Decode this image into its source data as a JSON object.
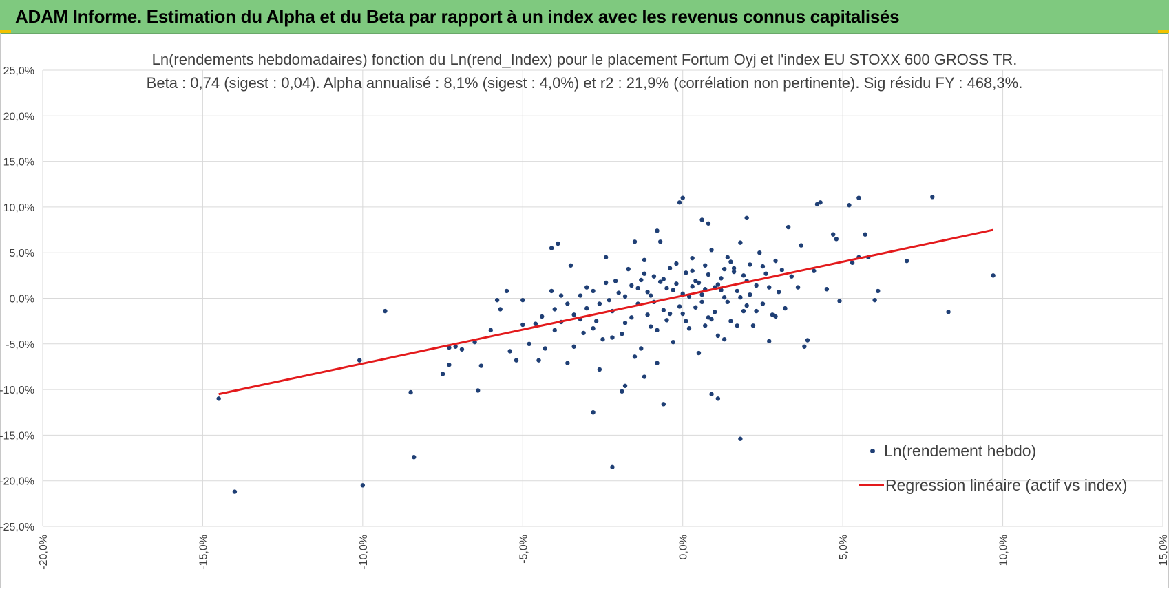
{
  "header": {
    "title": "ADAM Informe. Estimation du Alpha et du Beta par rapport à un index avec les revenus connus capitalisés"
  },
  "colors": {
    "banner": "#7fc97f",
    "points": "#1f3f75",
    "regression": "#e31a1c",
    "grid": "#d9d9d9",
    "text": "#404040"
  },
  "chart_data": {
    "type": "scatter",
    "title": "Ln(rendements hebdomadaires) fonction du Ln(rend_Index) pour le placement Fortum Oyj et l'index EU STOXX 600 GROSS TR.",
    "subtitle": "Beta : 0,74 (sigest : 0,04). Alpha annualisé : 8,1% (sigest : 4,0%) et r2 : 21,9% (corrélation non pertinente). Sig résidu FY : 468,3%.",
    "xlim": [
      -0.2,
      0.15
    ],
    "ylim": [
      -0.25,
      0.25
    ],
    "x_ticks": [
      -0.2,
      -0.15,
      -0.1,
      -0.05,
      0.0,
      0.05,
      0.1,
      0.15
    ],
    "x_tick_labels": [
      "-20,0%",
      "-15,0%",
      "-10,0%",
      "-5,0%",
      "0,0%",
      "5,0%",
      "10,0%",
      "15,0%"
    ],
    "y_ticks": [
      0.25,
      0.2,
      0.15,
      0.1,
      0.05,
      0.0,
      -0.05,
      -0.1,
      -0.15,
      -0.2,
      -0.25
    ],
    "y_tick_labels": [
      "25,0%",
      "20,0%",
      "15,0%",
      "10,0%",
      "5,0%",
      "0,0%",
      "-5,0%",
      "-10,0%",
      "-15,0%",
      "-20,0%",
      "-25,0%"
    ],
    "grid": true,
    "legend_position": "bottom-right",
    "series": [
      {
        "name": "Ln(rendement hebdo)",
        "kind": "scatter",
        "points": [
          [
            -0.145,
            -0.11
          ],
          [
            -0.14,
            -0.212
          ],
          [
            -0.101,
            -0.068
          ],
          [
            -0.1,
            -0.205
          ],
          [
            -0.093,
            -0.014
          ],
          [
            -0.085,
            -0.103
          ],
          [
            -0.084,
            -0.174
          ],
          [
            -0.075,
            -0.083
          ],
          [
            -0.073,
            -0.073
          ],
          [
            -0.073,
            -0.054
          ],
          [
            -0.071,
            -0.053
          ],
          [
            -0.069,
            -0.056
          ],
          [
            -0.064,
            -0.101
          ],
          [
            -0.063,
            -0.074
          ],
          [
            -0.065,
            -0.048
          ],
          [
            -0.06,
            -0.035
          ],
          [
            -0.058,
            -0.002
          ],
          [
            -0.057,
            -0.012
          ],
          [
            -0.055,
            0.008
          ],
          [
            -0.054,
            -0.058
          ],
          [
            -0.052,
            -0.068
          ],
          [
            -0.05,
            -0.029
          ],
          [
            -0.05,
            -0.002
          ],
          [
            -0.048,
            -0.05
          ],
          [
            -0.046,
            -0.028
          ],
          [
            -0.045,
            -0.068
          ],
          [
            -0.043,
            -0.055
          ],
          [
            -0.04,
            -0.035
          ],
          [
            -0.041,
            0.008
          ],
          [
            -0.038,
            0.003
          ],
          [
            -0.036,
            -0.071
          ],
          [
            -0.034,
            -0.053
          ],
          [
            -0.032,
            -0.023
          ],
          [
            -0.03,
            0.012
          ],
          [
            -0.028,
            0.008
          ],
          [
            -0.027,
            -0.025
          ],
          [
            -0.025,
            -0.045
          ],
          [
            -0.023,
            -0.002
          ],
          [
            -0.022,
            -0.043
          ],
          [
            -0.021,
            0.019
          ],
          [
            -0.019,
            -0.039
          ],
          [
            -0.018,
            0.002
          ],
          [
            -0.017,
            0.032
          ],
          [
            -0.016,
            -0.021
          ],
          [
            -0.015,
            -0.064
          ],
          [
            -0.014,
            0.011
          ],
          [
            -0.013,
            -0.055
          ],
          [
            -0.012,
            0.042
          ],
          [
            -0.011,
            0.007
          ],
          [
            -0.01,
            -0.031
          ],
          [
            -0.009,
            0.024
          ],
          [
            -0.008,
            -0.071
          ],
          [
            -0.007,
            0.062
          ],
          [
            -0.006,
            -0.013
          ],
          [
            -0.005,
            0.011
          ],
          [
            -0.004,
            0.033
          ],
          [
            -0.003,
            -0.048
          ],
          [
            -0.002,
            0.016
          ],
          [
            -0.001,
            -0.009
          ],
          [
            0.0,
            0.005
          ],
          [
            0.001,
            0.028
          ],
          [
            0.002,
            -0.033
          ],
          [
            0.003,
            0.044
          ],
          [
            0.004,
            -0.01
          ],
          [
            0.005,
            0.017
          ],
          [
            0.006,
            0.004
          ],
          [
            0.007,
            0.036
          ],
          [
            0.008,
            -0.021
          ],
          [
            0.009,
            0.053
          ],
          [
            0.01,
            0.012
          ],
          [
            0.011,
            -0.041
          ],
          [
            0.012,
            0.022
          ],
          [
            0.013,
            0.001
          ],
          [
            0.014,
            0.045
          ],
          [
            0.015,
            -0.025
          ],
          [
            0.016,
            0.029
          ],
          [
            0.017,
            0.008
          ],
          [
            0.018,
            0.061
          ],
          [
            0.019,
            -0.014
          ],
          [
            0.02,
            0.019
          ],
          [
            0.021,
            0.037
          ],
          [
            0.022,
            -0.03
          ],
          [
            0.023,
            0.014
          ],
          [
            0.024,
            0.05
          ],
          [
            0.025,
            -0.006
          ],
          [
            0.026,
            0.027
          ],
          [
            0.027,
            0.012
          ],
          [
            0.028,
            -0.018
          ],
          [
            0.029,
            0.041
          ],
          [
            0.03,
            0.007
          ],
          [
            -0.018,
            -0.096
          ],
          [
            -0.022,
            -0.185
          ],
          [
            -0.028,
            -0.125
          ],
          [
            -0.006,
            -0.116
          ],
          [
            0.009,
            -0.105
          ],
          [
            0.018,
            -0.154
          ],
          [
            0.011,
            -0.11
          ],
          [
            -0.012,
            -0.086
          ],
          [
            -0.019,
            -0.102
          ],
          [
            -0.026,
            -0.078
          ],
          [
            -0.031,
            -0.038
          ],
          [
            -0.035,
            0.036
          ],
          [
            -0.039,
            0.06
          ],
          [
            -0.041,
            0.055
          ],
          [
            -0.024,
            0.045
          ],
          [
            -0.015,
            0.062
          ],
          [
            -0.008,
            0.074
          ],
          [
            -0.001,
            0.105
          ],
          [
            0.0,
            0.11
          ],
          [
            0.006,
            0.086
          ],
          [
            0.008,
            0.082
          ],
          [
            0.02,
            0.088
          ],
          [
            0.033,
            0.078
          ],
          [
            0.037,
            0.058
          ],
          [
            0.042,
            0.103
          ],
          [
            0.043,
            0.105
          ],
          [
            0.047,
            0.07
          ],
          [
            0.048,
            0.065
          ],
          [
            0.052,
            0.102
          ],
          [
            0.055,
            0.11
          ],
          [
            0.057,
            0.07
          ],
          [
            0.055,
            0.045
          ],
          [
            0.053,
            0.039
          ],
          [
            0.058,
            0.045
          ],
          [
            0.06,
            -0.002
          ],
          [
            0.061,
            0.008
          ],
          [
            0.07,
            0.041
          ],
          [
            0.078,
            0.111
          ],
          [
            0.083,
            -0.015
          ],
          [
            0.097,
            0.025
          ],
          [
            0.049,
            -0.003
          ],
          [
            0.045,
            0.01
          ],
          [
            0.041,
            0.03
          ],
          [
            0.039,
            -0.046
          ],
          [
            0.038,
            -0.053
          ],
          [
            0.036,
            0.012
          ],
          [
            0.034,
            0.024
          ],
          [
            0.032,
            -0.011
          ],
          [
            0.031,
            0.031
          ],
          [
            0.029,
            -0.02
          ],
          [
            0.027,
            -0.047
          ],
          [
            0.025,
            0.035
          ],
          [
            0.023,
            -0.014
          ],
          [
            0.021,
            0.004
          ],
          [
            0.019,
            0.025
          ],
          [
            0.017,
            -0.03
          ],
          [
            0.015,
            0.04
          ],
          [
            0.013,
            -0.045
          ],
          [
            0.011,
            0.015
          ],
          [
            0.009,
            -0.023
          ],
          [
            0.007,
            0.01
          ],
          [
            0.005,
            -0.06
          ],
          [
            0.003,
            0.013
          ],
          [
            0.001,
            -0.025
          ],
          [
            -0.002,
            0.038
          ],
          [
            -0.004,
            -0.017
          ],
          [
            -0.006,
            0.021
          ],
          [
            -0.008,
            -0.035
          ],
          [
            -0.01,
            0.003
          ],
          [
            -0.012,
            0.027
          ],
          [
            -0.014,
            -0.006
          ],
          [
            -0.016,
            0.014
          ],
          [
            -0.018,
            -0.027
          ],
          [
            -0.02,
            0.006
          ],
          [
            -0.022,
            -0.014
          ],
          [
            -0.024,
            0.017
          ],
          [
            -0.026,
            -0.006
          ],
          [
            -0.028,
            -0.033
          ],
          [
            -0.03,
            -0.011
          ],
          [
            -0.032,
            0.003
          ],
          [
            -0.034,
            -0.018
          ],
          [
            -0.036,
            -0.006
          ],
          [
            -0.038,
            -0.026
          ],
          [
            -0.04,
            -0.012
          ],
          [
            -0.044,
            -0.02
          ],
          [
            0.002,
            0.002
          ],
          [
            0.004,
            0.019
          ],
          [
            0.006,
            -0.004
          ],
          [
            0.008,
            0.026
          ],
          [
            0.01,
            -0.015
          ],
          [
            0.012,
            0.009
          ],
          [
            0.014,
            -0.004
          ],
          [
            0.016,
            0.033
          ],
          [
            0.018,
            0.001
          ],
          [
            0.02,
            -0.008
          ],
          [
            -0.003,
            0.009
          ],
          [
            -0.005,
            -0.024
          ],
          [
            -0.007,
            0.018
          ],
          [
            -0.009,
            -0.004
          ],
          [
            -0.011,
            -0.018
          ],
          [
            -0.013,
            0.02
          ],
          [
            0.0,
            -0.017
          ],
          [
            0.003,
            0.03
          ],
          [
            0.007,
            -0.03
          ],
          [
            0.013,
            0.032
          ]
        ]
      },
      {
        "name": "Regression linéaire (actif vs index)",
        "kind": "line",
        "points": [
          [
            -0.145,
            -0.105
          ],
          [
            0.097,
            0.075
          ]
        ]
      }
    ]
  }
}
